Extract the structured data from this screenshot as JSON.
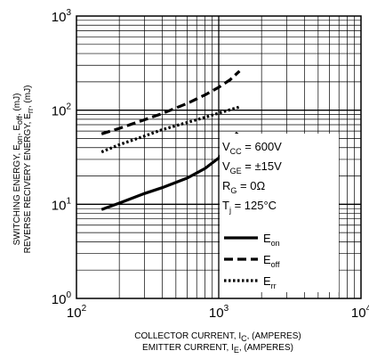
{
  "chart_data": {
    "type": "line",
    "scale": "log-log",
    "grid": true,
    "xlim": [
      100,
      10000
    ],
    "ylim": [
      1,
      1000
    ],
    "x_ticks": [
      {
        "base": "10",
        "exp": "2"
      },
      {
        "base": "10",
        "exp": "3"
      },
      {
        "base": "10",
        "exp": "4"
      }
    ],
    "y_ticks": [
      {
        "base": "10",
        "exp": "0"
      },
      {
        "base": "10",
        "exp": "1"
      },
      {
        "base": "10",
        "exp": "2"
      },
      {
        "base": "10",
        "exp": "3"
      }
    ],
    "xlabel": {
      "line1_main": "COLLECTOR CURRENT, I",
      "line1_sub": "C",
      "line1_tail": ", (AMPERES)",
      "line2_main": "EMITTER CURRENT, I",
      "line2_sub": "E",
      "line2_tail": ", (AMPERES)"
    },
    "ylabel": {
      "line1_a": "SWITCHING ENERGY, E",
      "line1_sub1": "on",
      "line1_b": ", E",
      "line1_sub2": "off",
      "line1_c": ", (mJ)",
      "line2_a": "REVERSE RECIVERY ENERGY, E",
      "line2_sub": "rr",
      "line2_b": ", (mJ)"
    },
    "conditions": [
      {
        "main": "V",
        "sub": "CC",
        "tail": " = 600V"
      },
      {
        "main": "V",
        "sub": "GE",
        "tail": " = ±15V"
      },
      {
        "main": "R",
        "sub": "G",
        "tail": " = 0Ω"
      },
      {
        "main": "T",
        "sub": "j",
        "tail": " = 125°C"
      }
    ],
    "legend_position": "right, below conditions",
    "series": [
      {
        "name": "on",
        "legend_main": "E",
        "legend_sub": "on",
        "style": "solid",
        "x": [
          150,
          200,
          300,
          400,
          600,
          800,
          1000,
          1200,
          1350
        ],
        "y": [
          8.8,
          10.3,
          13.0,
          15.0,
          19.0,
          24.0,
          31.0,
          44.0,
          58.0
        ]
      },
      {
        "name": "off",
        "legend_main": "E",
        "legend_sub": "off",
        "style": "dashed",
        "x": [
          150,
          200,
          300,
          400,
          600,
          800,
          1000,
          1200,
          1400
        ],
        "y": [
          56,
          64,
          79,
          92,
          118,
          145,
          175,
          210,
          260
        ]
      },
      {
        "name": "rr",
        "legend_main": "E",
        "legend_sub": "rr",
        "style": "dotted",
        "x": [
          150,
          200,
          300,
          400,
          600,
          800,
          1000,
          1200,
          1400
        ],
        "y": [
          36,
          43,
          53,
          62,
          74,
          84,
          93,
          101,
          108
        ]
      }
    ]
  }
}
